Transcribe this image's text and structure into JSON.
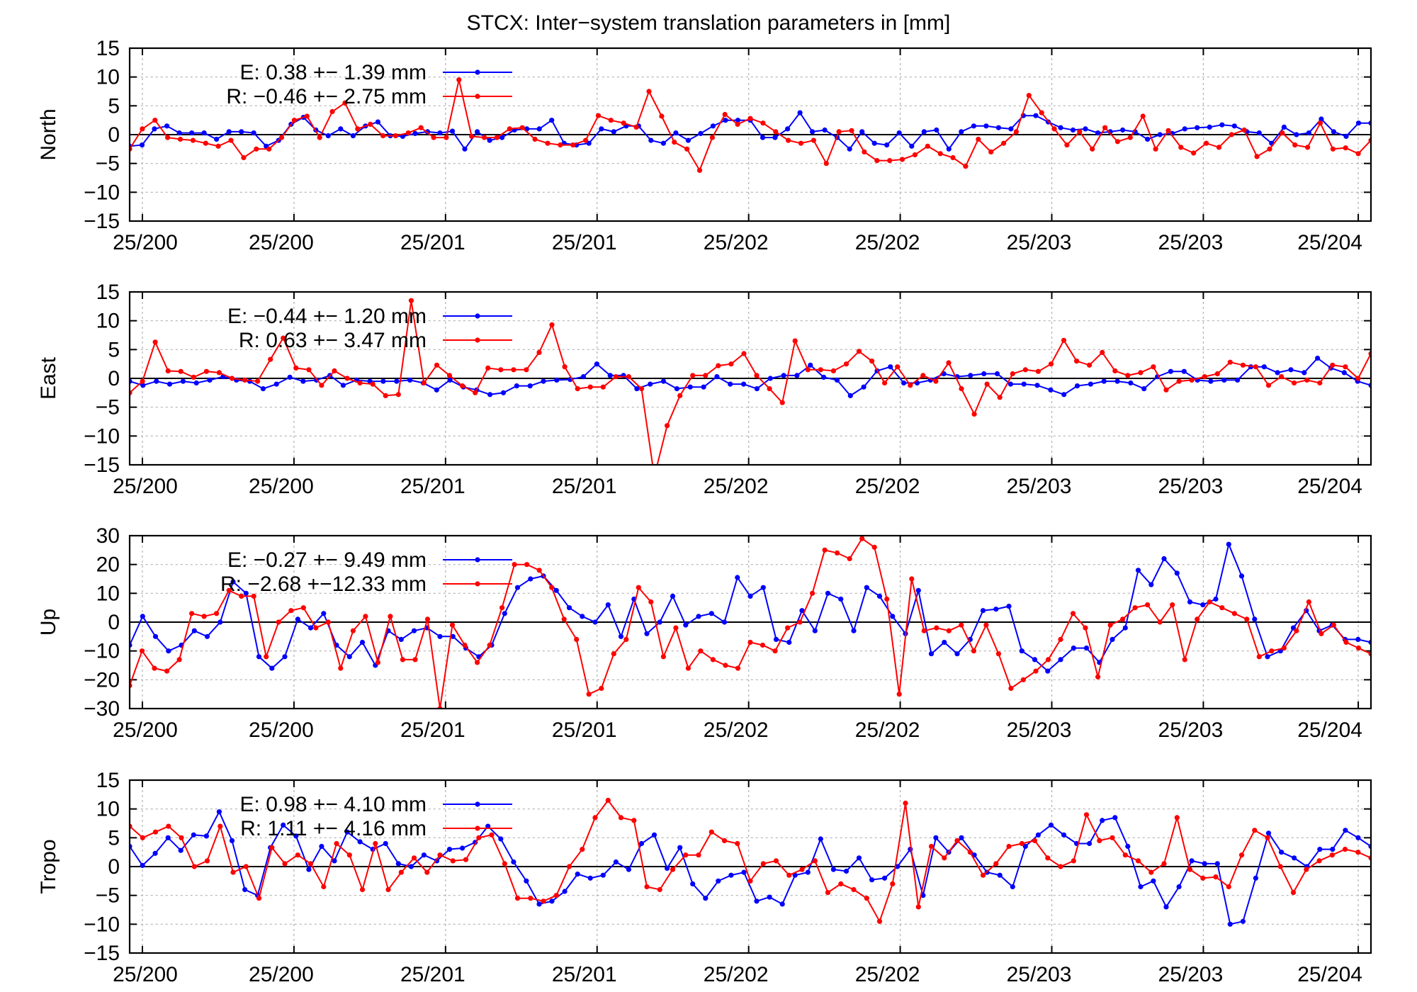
{
  "figure": {
    "title": "STCX: Inter−system translation parameters in [mm]"
  },
  "colors": {
    "E": "#0000ff",
    "R": "#ff0000",
    "zero_line": "#000000",
    "grid": "#b0b0b0"
  },
  "chart_data": [
    {
      "type": "line",
      "ylabel": "North",
      "ylim": [
        -15,
        15
      ],
      "yticks": [
        15,
        10,
        5,
        0,
        -5,
        -10,
        -15
      ],
      "xticklabels": [
        "25/200",
        "25/200",
        "25/201",
        "25/201",
        "25/202",
        "25/202",
        "25/203",
        "25/203",
        "25/204"
      ],
      "grid": true,
      "legend_position": "top-left",
      "series": [
        {
          "name": "E",
          "legend": "E:   0.38 +− 1.39 mm",
          "values": [
            -2,
            -1.8,
            1,
            1.5,
            0.3,
            0.3,
            0.3,
            -0.8,
            0.5,
            0.5,
            0.3,
            -2,
            -1,
            1.8,
            3,
            0.8,
            -0.2,
            1,
            -0.2,
            1.5,
            2.2,
            -0.2,
            -0.3,
            0.2,
            0.5,
            0.3,
            0.6,
            -2.5,
            0.5,
            -1,
            -0.5,
            0.8,
            1,
            1,
            2.5,
            -1.5,
            -1.8,
            -1.5,
            1,
            0.5,
            1.5,
            1.5,
            -1,
            -1.5,
            0.3,
            -1,
            0.2,
            1.5,
            2.5,
            2.5,
            2.5,
            -0.5,
            -0.5,
            1,
            3.8,
            0.5,
            0.8,
            -0.5,
            -2.5,
            0.5,
            -1.5,
            -1.8,
            0.3,
            -2,
            0.5,
            0.8,
            -2.5,
            0.5,
            1.5,
            1.5,
            1.2,
            1,
            3.3,
            3.3,
            2.2,
            1.2,
            0.8,
            1,
            0.3,
            0.5,
            0.8,
            0.5,
            -0.8,
            0,
            0.2,
            1,
            1.2,
            1.3,
            1.7,
            1.5,
            0.5,
            0.3,
            -1.5,
            1.3,
            0,
            0.3,
            2.7,
            0.5,
            -0.3,
            2,
            2
          ]
        },
        {
          "name": "R",
          "legend": "R:  −0.46 +− 2.75 mm",
          "values": [
            -2.5,
            1,
            2.5,
            -0.5,
            -0.8,
            -1,
            -1.5,
            -2,
            -1,
            -4,
            -2.5,
            -2.5,
            -0.5,
            2.5,
            3.2,
            -0.5,
            4,
            5.5,
            1,
            1.8,
            -0.2,
            -0.2,
            0.3,
            1.2,
            -0.5,
            -0.5,
            9.5,
            -0.3,
            -0.5,
            -0.5,
            1,
            1.2,
            -0.8,
            -1.5,
            -1.8,
            -1.8,
            -1,
            3.3,
            2.5,
            2,
            1.3,
            7.5,
            3.2,
            -1.3,
            -2.5,
            -6.2,
            -0.5,
            3.5,
            1.8,
            2.8,
            2,
            0.5,
            -1,
            -1.5,
            -1,
            -5,
            0.5,
            0.7,
            -3,
            -4.5,
            -4.5,
            -4.3,
            -3.5,
            -2,
            -3.3,
            -4,
            -5.5,
            -0.8,
            -3,
            -1.5,
            0.5,
            6.8,
            3.8,
            1,
            -1.8,
            0.5,
            -2.5,
            1.2,
            -1.2,
            -0.5,
            3.2,
            -2.5,
            0.7,
            -2.2,
            -3.2,
            -1.5,
            -2.2,
            0,
            0.8,
            -3.8,
            -2.5,
            0.3,
            -1.8,
            -2.2,
            2,
            -2.5,
            -2.3,
            -3.3,
            -1
          ]
        }
      ]
    },
    {
      "type": "line",
      "ylabel": "East",
      "ylim": [
        -15,
        15
      ],
      "yticks": [
        15,
        10,
        5,
        0,
        -5,
        -10,
        -15
      ],
      "xticklabels": [
        "25/200",
        "25/200",
        "25/201",
        "25/201",
        "25/202",
        "25/202",
        "25/203",
        "25/203",
        "25/204"
      ],
      "grid": true,
      "legend_position": "top-left",
      "series": [
        {
          "name": "E",
          "legend": "E:  −0.44 +− 1.20 mm",
          "values": [
            -0.5,
            -1.2,
            -0.5,
            -1,
            -0.5,
            -0.8,
            -0.3,
            0.3,
            -0.3,
            -0.5,
            -1.8,
            -1,
            0.2,
            -0.5,
            -0.3,
            0.5,
            -1.2,
            -0.3,
            -0.5,
            -0.5,
            -0.5,
            -0.3,
            -0.8,
            -2,
            -0.3,
            -1.5,
            -2,
            -2.8,
            -2.5,
            -1.3,
            -1.3,
            -0.5,
            -0.3,
            -0.2,
            0.3,
            2.5,
            0.5,
            0.5,
            -1.8,
            -1,
            -0.5,
            -1.8,
            -1.5,
            -1.5,
            0.3,
            -1,
            -1,
            -1.8,
            0,
            0.5,
            0.5,
            2.3,
            0.2,
            -0.3,
            -3,
            -1.5,
            1.3,
            2,
            -0.8,
            -0.8,
            -0.3,
            0.8,
            0.3,
            0.5,
            0.8,
            0.8,
            -1,
            -1,
            -1.2,
            -2,
            -2.8,
            -1.3,
            -1,
            -0.5,
            -0.5,
            -0.8,
            -1.8,
            0.3,
            1.2,
            1.2,
            -0.3,
            -0.5,
            -0.3,
            -0.3,
            2,
            2,
            1,
            1.5,
            1,
            3.5,
            1.8,
            1,
            -0.5,
            -1.2
          ]
        },
        {
          "name": "R",
          "legend": "R:   0.63 +− 3.47 mm",
          "values": [
            -2.5,
            -0.5,
            6.3,
            1.3,
            1.2,
            0.2,
            1.2,
            1,
            0,
            -0.3,
            -0.5,
            3.3,
            7,
            1.8,
            1.5,
            -1.2,
            1.3,
            0,
            -0.8,
            -1,
            -3,
            -2.8,
            13.5,
            -0.8,
            2.3,
            0.5,
            -1.3,
            -2.5,
            1.8,
            1.5,
            1.5,
            1.5,
            4.5,
            9.3,
            2,
            -1.8,
            -1.5,
            -1.5,
            0.3,
            0.3,
            -1.8,
            -17,
            -8.2,
            -3,
            0.5,
            0.5,
            2.2,
            2.5,
            4.3,
            0.5,
            -1.8,
            -4.2,
            6.5,
            1.5,
            1.5,
            1.3,
            2.5,
            4.7,
            3,
            -0.8,
            2,
            -1.2,
            0.5,
            -0.5,
            2.7,
            -1.8,
            -6.2,
            -1,
            -3.3,
            0.8,
            1.5,
            1.2,
            2.5,
            6.6,
            3,
            2.3,
            4.5,
            1.3,
            0.5,
            1,
            2,
            -2,
            -0.5,
            -0.3,
            0.3,
            0.8,
            2.8,
            2.3,
            2,
            -1.2,
            0.3,
            -0.8,
            -0.3,
            -0.8,
            2.3,
            2,
            0,
            4.3
          ]
        }
      ]
    },
    {
      "type": "line",
      "ylabel": "Up",
      "ylim": [
        -30,
        30
      ],
      "yticks": [
        30,
        20,
        10,
        0,
        -10,
        -20,
        -30
      ],
      "xticklabels": [
        "25/200",
        "25/200",
        "25/201",
        "25/201",
        "25/202",
        "25/202",
        "25/203",
        "25/203",
        "25/204"
      ],
      "grid": true,
      "legend_position": "top-left",
      "series": [
        {
          "name": "E",
          "legend": "E:  −0.27 +− 9.49 mm",
          "values": [
            -8,
            2,
            -5,
            -10,
            -8,
            -3,
            -5,
            0,
            14,
            10,
            -12,
            -16,
            -12,
            1,
            -2,
            3,
            -8,
            -12,
            -7,
            -15,
            -3,
            -6,
            -3,
            -2,
            -5,
            -5,
            -9,
            -12,
            -8,
            3,
            12,
            15,
            16,
            11,
            5,
            2,
            0,
            6,
            -5,
            8,
            -4,
            0,
            9,
            -1,
            2,
            3,
            0,
            15.5,
            9,
            12,
            -6,
            -7,
            4,
            -3,
            10,
            8,
            -3,
            12,
            9,
            2,
            -4,
            11,
            -11,
            -7,
            -11,
            -6,
            4,
            4.5,
            5.5,
            -10,
            -13,
            -17,
            -13,
            -9,
            -9,
            -14,
            -6,
            -2,
            18,
            13,
            22,
            17,
            7,
            6,
            8,
            27,
            16,
            1,
            -12,
            -10,
            -2,
            4,
            -3,
            -1,
            -6,
            -6,
            -7
          ]
        },
        {
          "name": "R",
          "legend": "R:  −2.68 +−12.33 mm",
          "values": [
            -22,
            -10,
            -16,
            -17,
            -13,
            3,
            2,
            3,
            11,
            9,
            9,
            -12,
            0,
            4,
            5,
            -2,
            0,
            -16,
            -3,
            2,
            -14,
            2,
            -13,
            -13,
            1,
            -30,
            -1,
            -8,
            -14,
            -8,
            5,
            20,
            20,
            18,
            12,
            1,
            -6,
            -25,
            -23,
            -11,
            -6,
            12,
            7,
            -12,
            -2,
            -16,
            -10,
            -13,
            -15,
            -16,
            -7,
            -8,
            -10,
            -2,
            0,
            10,
            25,
            24,
            22,
            29,
            26,
            8,
            -25,
            15,
            -3,
            -2,
            -3,
            -1,
            -10,
            -1,
            -11,
            -23,
            -20,
            -17,
            -13,
            -6,
            3,
            -2,
            -19,
            -1,
            1,
            5,
            6,
            0,
            6,
            -13,
            1,
            7,
            5,
            3,
            1,
            -12,
            -10,
            -9,
            -3,
            7,
            -4,
            -1,
            -7,
            -9,
            -11
          ]
        }
      ]
    },
    {
      "type": "line",
      "ylabel": "Tropo",
      "ylim": [
        -15,
        15
      ],
      "yticks": [
        15,
        10,
        5,
        0,
        -5,
        -10,
        -15
      ],
      "xticklabels": [
        "25/200",
        "25/200",
        "25/201",
        "25/201",
        "25/202",
        "25/202",
        "25/203",
        "25/203",
        "25/204"
      ],
      "grid": true,
      "legend_position": "top-left",
      "series": [
        {
          "name": "E",
          "legend": "E:   0.98 +− 4.10 mm",
          "values": [
            3.5,
            0.2,
            2.3,
            5,
            2.8,
            5.5,
            5.3,
            9.5,
            4.5,
            -4,
            -5,
            3.3,
            7.2,
            5.3,
            -0.5,
            3.5,
            1,
            6,
            4.3,
            3,
            4,
            0.5,
            0,
            2,
            1,
            3,
            3.2,
            4.2,
            7,
            4.8,
            0.8,
            -2.5,
            -6.5,
            -6,
            -4.3,
            -1.3,
            -2,
            -1.5,
            0.8,
            -0.5,
            4,
            5.5,
            -0.3,
            3.3,
            -3,
            -5.5,
            -2.5,
            -1.5,
            -1,
            -6,
            -5.3,
            -6.5,
            -1.5,
            -1,
            4.8,
            -0.5,
            -0.8,
            1.5,
            -2.3,
            -2,
            0,
            3,
            -5,
            5,
            2.5,
            5,
            2,
            -1,
            -1.5,
            -3.5,
            3.5,
            5.5,
            7.2,
            5.5,
            4,
            4,
            8,
            8.5,
            3.5,
            -3.5,
            -2.5,
            -7,
            -3.5,
            1,
            0.5,
            0.5,
            -10,
            -9.5,
            -2,
            5.8,
            2.5,
            1.5,
            0,
            3,
            3,
            6.3,
            5,
            3.5
          ]
        },
        {
          "name": "R",
          "legend": "R:   1.11 +− 4.16 mm",
          "values": [
            7,
            5,
            6,
            7,
            5,
            0,
            1,
            7,
            -1,
            0,
            -5.5,
            3.3,
            0.5,
            2,
            0.5,
            -3.5,
            4,
            2,
            -4,
            4,
            -4,
            -1,
            1.5,
            -1,
            2,
            1,
            1.2,
            5,
            5.5,
            0.5,
            -5.5,
            -5.5,
            -6,
            -5,
            0,
            3,
            8.5,
            11.5,
            8.5,
            8,
            -3.5,
            -4,
            -0.5,
            2,
            2,
            6,
            4.5,
            4,
            -2.5,
            0.5,
            1,
            -1.5,
            -0.5,
            1,
            -4.5,
            -3,
            -4,
            -5.5,
            -9.5,
            -3,
            11,
            -7,
            3.5,
            1.5,
            4.5,
            2.5,
            -1.5,
            0.5,
            3.5,
            4,
            4.5,
            1.5,
            0,
            1,
            9,
            4.5,
            5,
            2,
            1,
            -1,
            0.5,
            8.5,
            -0.5,
            -2,
            -1.8,
            -3.5,
            2,
            6.3,
            5,
            0,
            -4.5,
            -0.5,
            1,
            2,
            3,
            2.5,
            1.5
          ]
        }
      ]
    }
  ]
}
